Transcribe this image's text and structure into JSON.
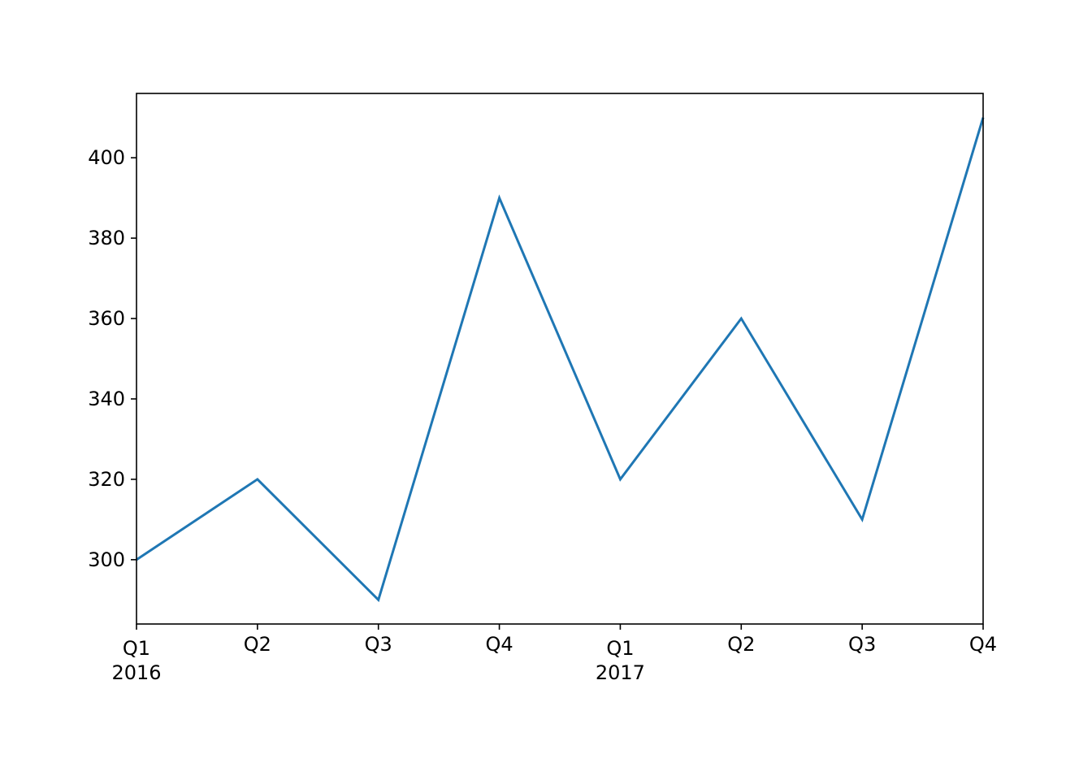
{
  "chart_data": {
    "type": "line",
    "title": "",
    "xlabel": "",
    "ylabel": "",
    "x": [
      "2016Q1",
      "2016Q2",
      "2016Q3",
      "2016Q4",
      "2017Q1",
      "2017Q2",
      "2017Q3",
      "2017Q4"
    ],
    "x_tick_labels": [
      {
        "quarter": "Q1",
        "year": "2016"
      },
      {
        "quarter": "Q2",
        "year": ""
      },
      {
        "quarter": "Q3",
        "year": ""
      },
      {
        "quarter": "Q4",
        "year": ""
      },
      {
        "quarter": "Q1",
        "year": "2017"
      },
      {
        "quarter": "Q2",
        "year": ""
      },
      {
        "quarter": "Q3",
        "year": ""
      },
      {
        "quarter": "Q4",
        "year": ""
      }
    ],
    "series": [
      {
        "values": [
          300,
          320,
          290,
          390,
          320,
          360,
          310,
          410
        ],
        "color": "#1f77b4"
      }
    ],
    "y_ticks": [
      300,
      320,
      340,
      360,
      380,
      400
    ],
    "ylim": [
      284,
      416
    ],
    "grid": false,
    "legend": "none"
  }
}
